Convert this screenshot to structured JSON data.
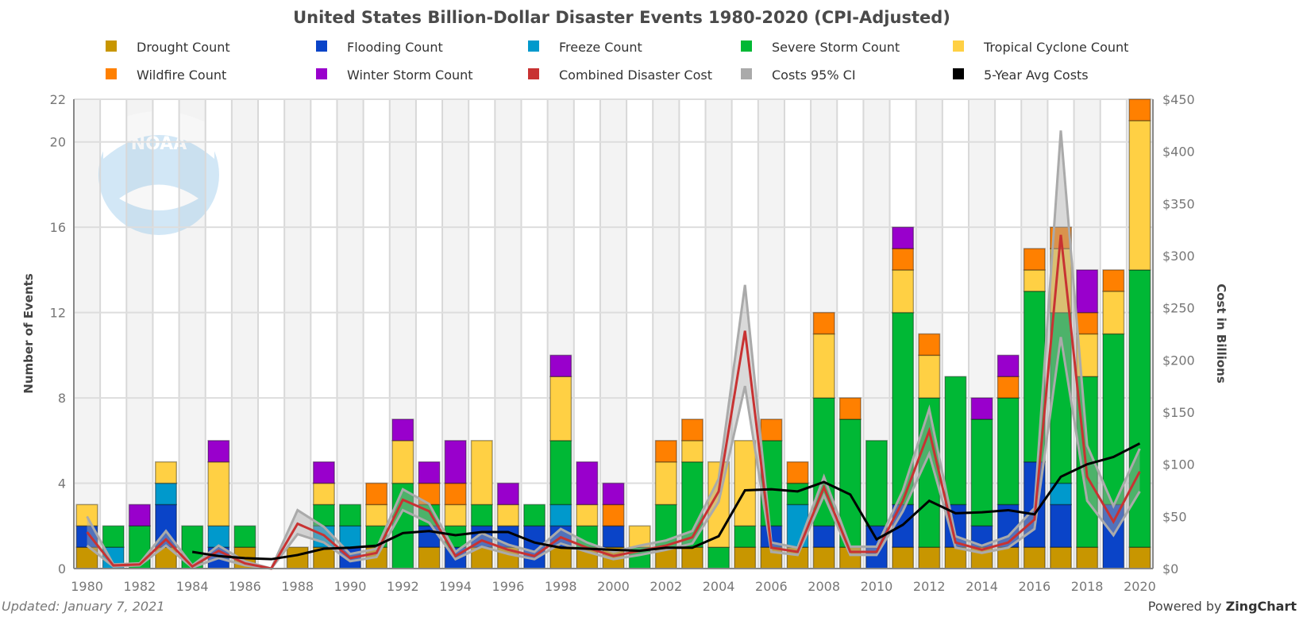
{
  "chart_data": {
    "type": "bar",
    "stacked": true,
    "title": "United States Billion-Dollar Disaster Events 1980-2020 (CPI-Adjusted)",
    "ylabel": "Number of Events",
    "y2label": "Cost in Billions",
    "ylim": [
      0,
      22
    ],
    "y2lim": [
      0,
      450
    ],
    "yticks": [
      "0",
      "4",
      "8",
      "12",
      "16",
      "20",
      "22"
    ],
    "y2ticks": [
      "$0",
      "$50",
      "$100",
      "$150",
      "$200",
      "$250",
      "$300",
      "$350",
      "$400",
      "$450"
    ],
    "legend_position": "top",
    "grid": true,
    "categories": [
      1980,
      1981,
      1982,
      1983,
      1984,
      1985,
      1986,
      1987,
      1988,
      1989,
      1990,
      1991,
      1992,
      1993,
      1994,
      1995,
      1996,
      1997,
      1998,
      1999,
      2000,
      2001,
      2002,
      2003,
      2004,
      2005,
      2006,
      2007,
      2008,
      2009,
      2010,
      2011,
      2012,
      2013,
      2014,
      2015,
      2016,
      2017,
      2018,
      2019,
      2020
    ],
    "series": [
      {
        "name": "Drought Count",
        "color": "#c89600",
        "values": [
          1,
          0,
          0,
          1,
          0,
          0,
          1,
          0,
          1,
          1,
          0,
          1,
          0,
          1,
          0,
          1,
          1,
          0,
          1,
          1,
          1,
          0,
          1,
          1,
          0,
          1,
          1,
          1,
          1,
          1,
          0,
          1,
          1,
          1,
          1,
          1,
          1,
          1,
          1,
          0,
          1
        ]
      },
      {
        "name": "Flooding Count",
        "color": "#0a44c8",
        "values": [
          1,
          0,
          0,
          2,
          0,
          1,
          0,
          0,
          0,
          0,
          1,
          0,
          0,
          1,
          1,
          1,
          1,
          2,
          1,
          0,
          1,
          0,
          0,
          0,
          0,
          0,
          1,
          0,
          1,
          0,
          2,
          2,
          0,
          2,
          1,
          2,
          4,
          2,
          0,
          3,
          0
        ]
      },
      {
        "name": "Freeze Count",
        "color": "#0099cc",
        "values": [
          0,
          1,
          0,
          1,
          0,
          1,
          0,
          0,
          0,
          1,
          1,
          0,
          0,
          0,
          0,
          0,
          0,
          0,
          1,
          0,
          0,
          0,
          0,
          0,
          0,
          0,
          0,
          2,
          0,
          0,
          0,
          0,
          0,
          0,
          0,
          0,
          0,
          1,
          0,
          0,
          0
        ]
      },
      {
        "name": "Severe Storm Count",
        "color": "#00b835",
        "values": [
          0,
          1,
          2,
          0,
          2,
          0,
          1,
          0,
          0,
          1,
          1,
          1,
          4,
          1,
          1,
          1,
          0,
          1,
          3,
          1,
          0,
          1,
          2,
          4,
          1,
          1,
          4,
          1,
          6,
          6,
          4,
          9,
          7,
          6,
          5,
          5,
          8,
          8,
          8,
          8,
          13
        ]
      },
      {
        "name": "Tropical Cyclone Count",
        "color": "#ffd044",
        "values": [
          1,
          0,
          0,
          1,
          0,
          3,
          0,
          0,
          0,
          1,
          0,
          1,
          2,
          0,
          1,
          3,
          1,
          0,
          3,
          1,
          0,
          1,
          2,
          1,
          4,
          4,
          0,
          0,
          3,
          0,
          0,
          2,
          2,
          0,
          0,
          0,
          1,
          3,
          2,
          2,
          7
        ]
      },
      {
        "name": "Wildfire Count",
        "color": "#ff8000",
        "values": [
          0,
          0,
          0,
          0,
          0,
          0,
          0,
          0,
          0,
          0,
          0,
          1,
          0,
          1,
          1,
          0,
          0,
          0,
          0,
          0,
          1,
          0,
          1,
          1,
          0,
          0,
          1,
          1,
          1,
          1,
          0,
          1,
          1,
          0,
          0,
          1,
          1,
          1,
          1,
          1,
          1
        ]
      },
      {
        "name": "Winter Storm Count",
        "color": "#9900cc",
        "values": [
          0,
          0,
          1,
          0,
          0,
          1,
          0,
          0,
          0,
          1,
          0,
          0,
          1,
          1,
          2,
          0,
          1,
          0,
          1,
          2,
          1,
          0,
          0,
          0,
          0,
          0,
          0,
          0,
          0,
          0,
          0,
          1,
          0,
          0,
          1,
          1,
          0,
          0,
          2,
          0,
          0
        ]
      }
    ],
    "lines": [
      {
        "name": "Combined Disaster Cost",
        "color": "#c83232",
        "axis": "y2",
        "values": [
          35,
          3,
          4,
          28,
          2,
          17,
          5,
          0,
          43,
          32,
          10,
          15,
          66,
          55,
          12,
          27,
          18,
          12,
          30,
          20,
          12,
          17,
          22,
          30,
          74,
          228,
          20,
          16,
          78,
          16,
          16,
          65,
          132,
          25,
          18,
          25,
          47,
          320,
          88,
          45,
          93
        ]
      },
      {
        "name": "Costs 95% CI",
        "color": "#aaaaaa",
        "axis": "y2",
        "lower": [
          22,
          2,
          3,
          22,
          1,
          10,
          3,
          0,
          33,
          25,
          7,
          11,
          56,
          44,
          9,
          21,
          14,
          9,
          24,
          16,
          9,
          13,
          18,
          24,
          64,
          175,
          16,
          13,
          70,
          13,
          13,
          55,
          110,
          20,
          15,
          20,
          38,
          222,
          65,
          32,
          74
        ],
        "upper": [
          50,
          4,
          5,
          36,
          3,
          22,
          7,
          0,
          56,
          40,
          14,
          19,
          76,
          62,
          16,
          34,
          23,
          16,
          38,
          25,
          16,
          22,
          27,
          36,
          86,
          272,
          25,
          20,
          88,
          21,
          21,
          75,
          153,
          31,
          22,
          31,
          58,
          420,
          118,
          60,
          115
        ]
      },
      {
        "name": "5-Year Avg Costs",
        "color": "#000000",
        "axis": "y2",
        "start": 1984,
        "values": [
          16,
          12,
          10,
          9,
          13,
          19,
          20,
          22,
          34,
          36,
          32,
          35,
          35,
          25,
          20,
          19,
          18,
          17,
          20,
          20,
          31,
          75,
          76,
          74,
          83,
          71,
          28,
          42,
          65,
          53,
          54,
          56,
          52,
          88,
          100,
          107,
          120
        ]
      }
    ]
  },
  "footer": {
    "updated": "Updated: January 7, 2021",
    "powered_prefix": "Powered by ",
    "powered_brand": "ZingChart"
  },
  "logo_text": "NOAA"
}
